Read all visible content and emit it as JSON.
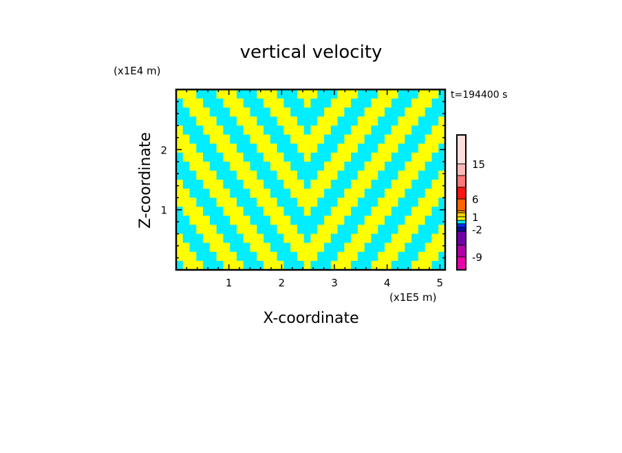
{
  "chart_data": {
    "type": "heatmap",
    "title": "vertical velocity",
    "xlabel": "X-coordinate",
    "ylabel": "Z-coordinate",
    "x_unit": "(x1E5 m)",
    "y_unit": "(x1E4 m)",
    "time_label": "t=194400 s",
    "xlim": [
      0,
      5.1
    ],
    "ylim": [
      0,
      3.0
    ],
    "x_ticks": [
      1,
      2,
      3,
      4,
      5
    ],
    "y_ticks": [
      1,
      2
    ],
    "field_legend": {
      "Y": "0 to 1 (yellow)",
      "C": "-1 to 0 (cyan)"
    },
    "field_colors": {
      "Y": "#ffff00",
      "C": "#00eeff"
    },
    "field_rows_top_to_bottom": [
      "YYYCCCYYYCCCYYYCCCYYYCCCYYYCCCYYYCCCYYYC",
      "CYYYCCCYYYCCCYYYCCCYCCCYYYCCCYYYCCCYYYCC",
      "CCYYYCCCYYYCCCYYYCCCCCYYYCCCYYYCCCYYYCCC",
      "CCCYYYCCCYYYCCCYYYCCCYYYCCCYYYCCCYYYCCCY",
      "YCCCYYYCCCYYYCCCYYYCYYYCCCYYYCCCYYYCCCYY",
      "YYCCCYYYCCCYYYCCCYYYYYCCCYYYCCCYYYCCCYYY",
      "YYYCCCYYYCCCYYYCCCYYYCCCYYYCCCYYYCCCYYYC",
      "CYYYCCCYYYCCCYYYCCCYCCCYYYCCCYYYCCCYYYCC",
      "CCYYYCCCYYYCCCYYYCCCCCYYYCCCYYYCCCYYYCCC",
      "CCCYYYCCCYYYCCCYYYCCCYYYCCCYYYCCCYYYCCCY",
      "YCCCYYYCCCYYYCCCYYYCYYYCCCYYYCCCYYYCCCYY",
      "YYCCCYYYCCCYYYCCCYYYYYCCCYYYCCCYYYCCCYYY",
      "YYYCCCYYYCCCYYYCCCYYYCCCYYYCCCYYYCCCYYYC",
      "CYYYCCCYYYCCCYYYCCCYCCCYYYCCCYYYCCCYYYCC",
      "CCYYYCCCYYYCCCYYYCCCCCYYYCCCYYYCCCYYYCCC",
      "CCCYYYCCCYYYCCCYYYCCCYYYCCCYYYCCCYYYCCCY",
      "YCCCYYYCCCYYYCCCYYYCYYYCCCYYYCCCYYYCCCYY",
      "YYCCCYYYCCCYYYCCCYYYYYCCCYYYCCCYYYCCCYYY",
      "YYYCCCYYYCCCYYYCCCYYYCCCYYYCCCYYYCCCYYYC",
      "CYYYCCCYYYCCCYYYCCCYCCCYYYCCCYYYCCCYYYCC"
    ],
    "colorbar": {
      "labels": [
        "15",
        "6",
        "1",
        "-2",
        "-9"
      ],
      "colors_top_to_bottom": [
        "#ffdede",
        "#ffb8b8",
        "#ff7878",
        "#ff1414",
        "#ff6400",
        "#ffa000",
        "#ffd000",
        "#ffff00",
        "#00e6ff",
        "#0030ff",
        "#0010a0",
        "#7000a8",
        "#b000a8",
        "#e800a8"
      ]
    }
  }
}
